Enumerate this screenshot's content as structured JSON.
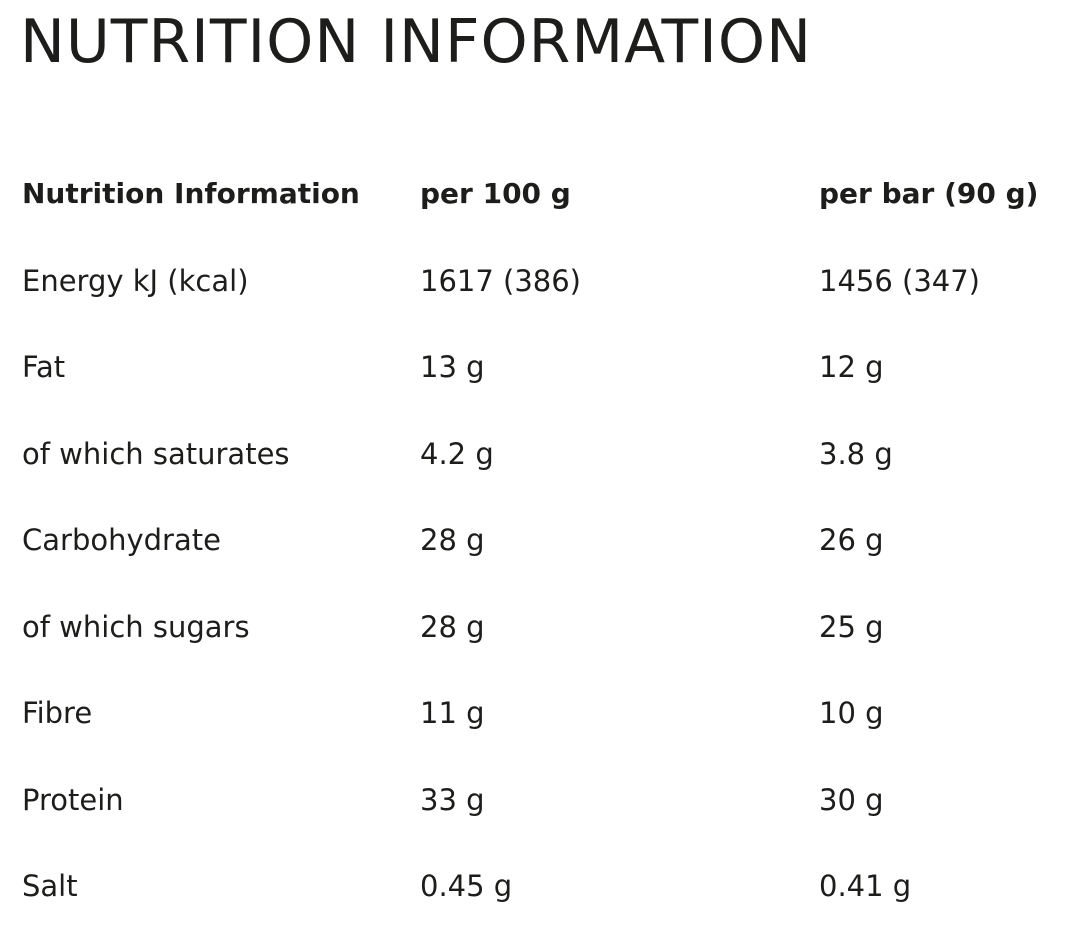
{
  "title": "NUTRITION INFORMATION",
  "table": {
    "headers": [
      "Nutrition Information",
      "per 100 g",
      "per bar (90 g)"
    ],
    "rows": [
      [
        "Energy kJ (kcal)",
        "1617 (386)",
        "1456 (347)"
      ],
      [
        "Fat",
        "13 g",
        "12 g"
      ],
      [
        "of which saturates",
        "4.2 g",
        "3.8 g"
      ],
      [
        "Carbohydrate",
        "28 g",
        "26 g"
      ],
      [
        "of which sugars",
        "28 g",
        "25 g"
      ],
      [
        "Fibre",
        "11 g",
        "10 g"
      ],
      [
        "Protein",
        "33 g",
        "30 g"
      ],
      [
        "Salt",
        "0.45 g",
        "0.41 g"
      ]
    ]
  }
}
